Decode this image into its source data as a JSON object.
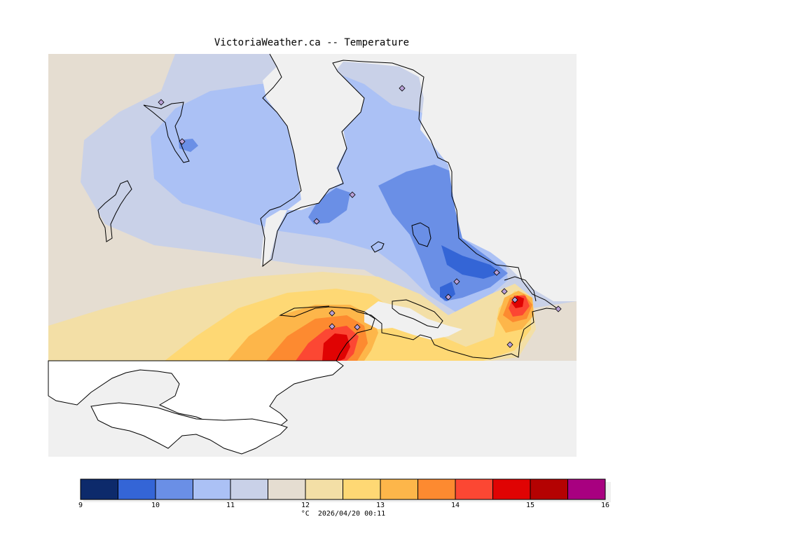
{
  "title": "VictoriaWeather.ca -- Temperature",
  "legend": {
    "unit": "°C",
    "timestamp": "2026/04/20 00:11",
    "ticks": [
      "9",
      "10",
      "11",
      "12",
      "13",
      "14",
      "15",
      "16"
    ],
    "bins": [
      {
        "range": "9.0-9.5",
        "color": "#0d2a6b"
      },
      {
        "range": "9.5-10.0",
        "color": "#3465d6"
      },
      {
        "range": "10.0-10.5",
        "color": "#6a8fe6"
      },
      {
        "range": "10.5-11.0",
        "color": "#abc1f5"
      },
      {
        "range": "11.0-11.5",
        "color": "#c9d1e8"
      },
      {
        "range": "11.5-12.0",
        "color": "#e5ddd1"
      },
      {
        "range": "12.0-12.5",
        "color": "#f3dfa6"
      },
      {
        "range": "12.5-13.0",
        "color": "#fed874"
      },
      {
        "range": "13.0-13.5",
        "color": "#fdb64a"
      },
      {
        "range": "13.5-14.0",
        "color": "#fd8a30"
      },
      {
        "range": "14.0-14.5",
        "color": "#fc4733"
      },
      {
        "range": "14.5-15.0",
        "color": "#e00303"
      },
      {
        "range": "15.0-15.5",
        "color": "#b40202"
      },
      {
        "range": "15.5-16.0",
        "color": "#a80080"
      }
    ]
  },
  "colors": {
    "land_default": "#e5ddd1",
    "water": "#f0f0f0",
    "outside": "#ffffff",
    "coastline": "#000000",
    "station_marker": "#b9a0d7"
  },
  "station_count": 15
}
